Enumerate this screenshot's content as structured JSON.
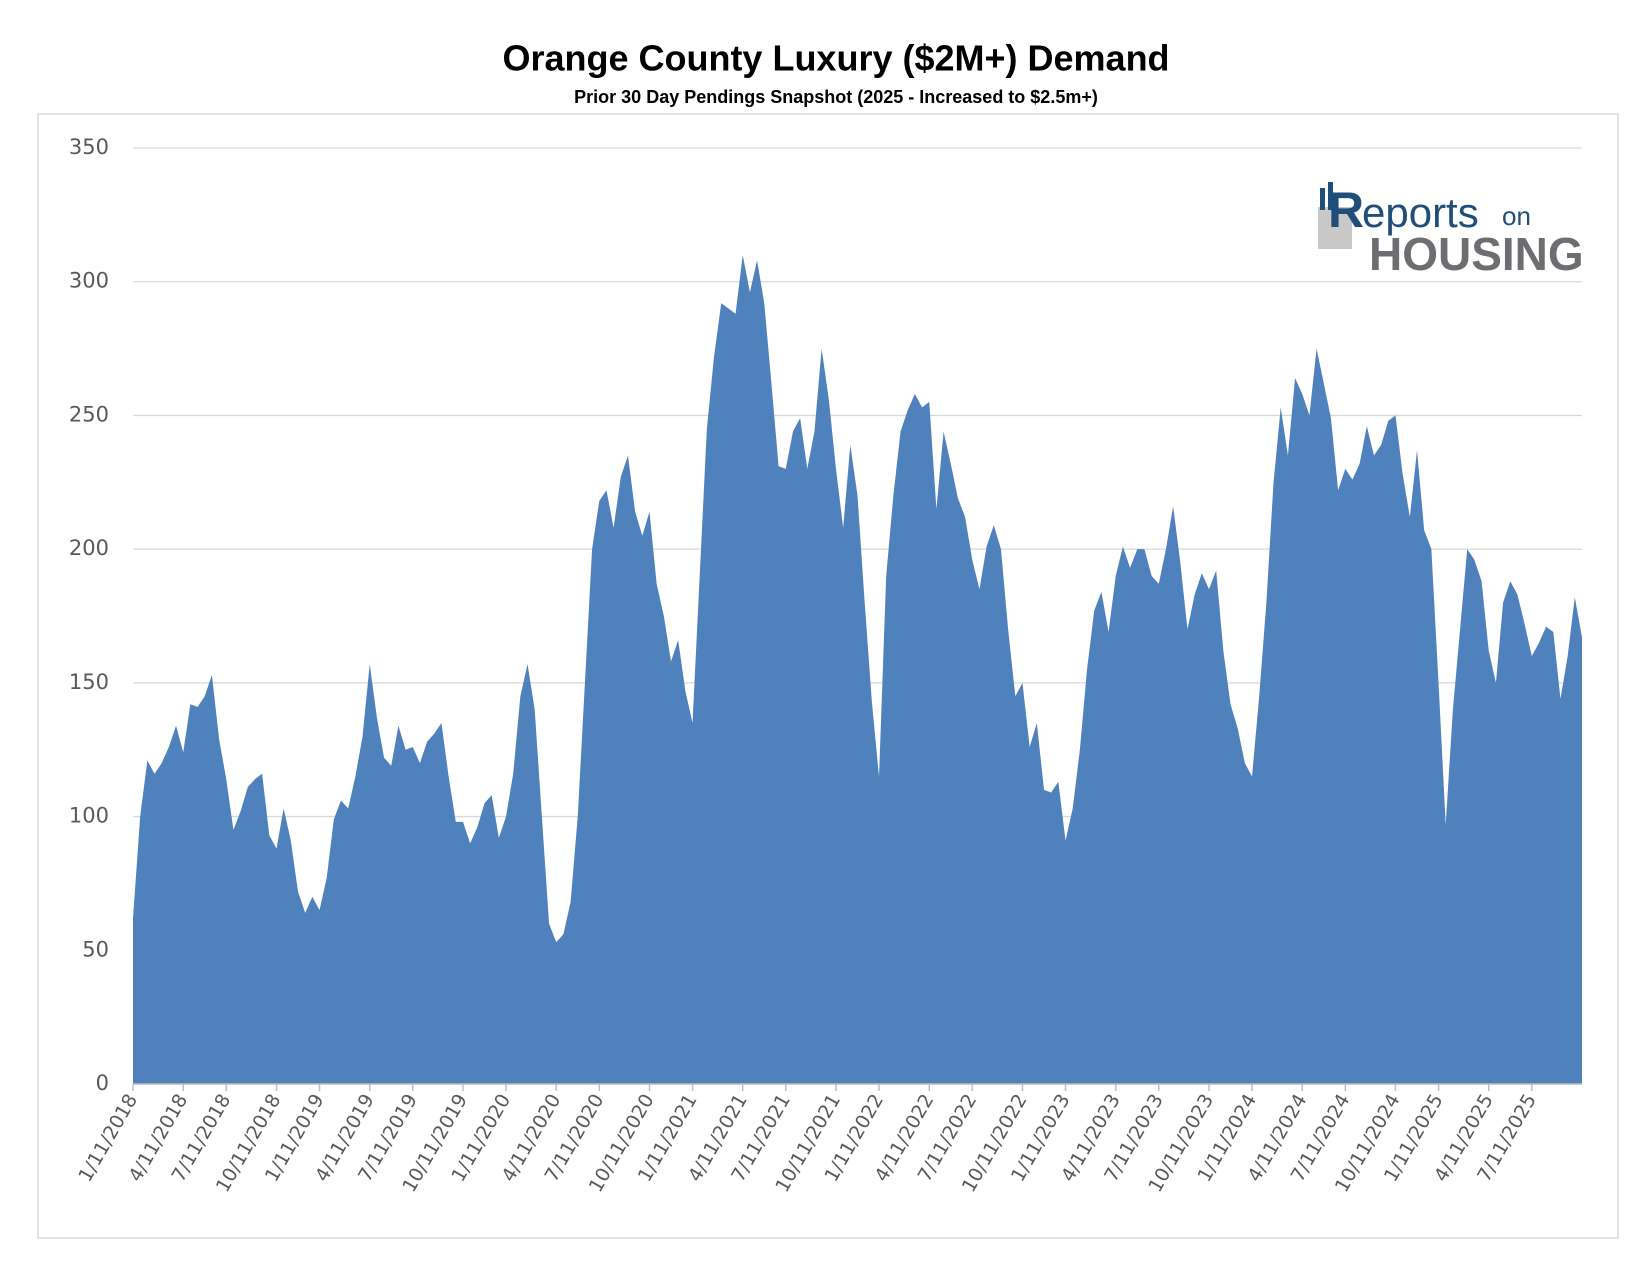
{
  "chart_data": {
    "type": "area",
    "title": "Orange County Luxury ($2M+) Demand",
    "subtitle": "Prior 30 Day Pendings Snapshot (2025 - Increased to $2.5m+)",
    "logo_text": [
      "R",
      "eports",
      "on",
      "HOUSING"
    ],
    "color": "#4f81bd",
    "grid": true,
    "ylim": [
      0,
      350
    ],
    "yticks": [
      0,
      50,
      100,
      150,
      200,
      250,
      300,
      350
    ],
    "categories": [
      "1/11/2018",
      null,
      null,
      null,
      null,
      null,
      null,
      "4/11/2018",
      null,
      null,
      null,
      null,
      null,
      "7/11/2018",
      null,
      null,
      null,
      null,
      null,
      null,
      "10/11/2018",
      null,
      null,
      null,
      null,
      null,
      "1/11/2019",
      null,
      null,
      null,
      null,
      null,
      null,
      "4/11/2019",
      null,
      null,
      null,
      null,
      null,
      "7/11/2019",
      null,
      null,
      null,
      null,
      null,
      null,
      "10/11/2019",
      null,
      null,
      null,
      null,
      null,
      "1/11/2020",
      null,
      null,
      null,
      null,
      null,
      null,
      "4/11/2020",
      null,
      null,
      null,
      null,
      null,
      "7/11/2020",
      null,
      null,
      null,
      null,
      null,
      null,
      "10/11/2020",
      null,
      null,
      null,
      null,
      null,
      "1/11/2021",
      null,
      null,
      null,
      null,
      null,
      null,
      "4/11/2021",
      null,
      null,
      null,
      null,
      null,
      "7/11/2021",
      null,
      null,
      null,
      null,
      null,
      null,
      "10/11/2021",
      null,
      null,
      null,
      null,
      null,
      "1/11/2022",
      null,
      null,
      null,
      null,
      null,
      null,
      "4/11/2022",
      null,
      null,
      null,
      null,
      null,
      "7/11/2022",
      null,
      null,
      null,
      null,
      null,
      null,
      "10/11/2022",
      null,
      null,
      null,
      null,
      null,
      "1/11/2023",
      null,
      null,
      null,
      null,
      null,
      null,
      "4/11/2023",
      null,
      null,
      null,
      null,
      null,
      "7/11/2023",
      null,
      null,
      null,
      null,
      null,
      null,
      "10/11/2023",
      null,
      null,
      null,
      null,
      null,
      "1/11/2024",
      null,
      null,
      null,
      null,
      null,
      null,
      "4/11/2024",
      null,
      null,
      null,
      null,
      null,
      "7/11/2024",
      null,
      null,
      null,
      null,
      null,
      null,
      "10/11/2024",
      null,
      null,
      null,
      null,
      null,
      "1/11/2025",
      null,
      null,
      null,
      null,
      null,
      null,
      "4/11/2025",
      null,
      null,
      null,
      null,
      null,
      "7/11/2025",
      null,
      null,
      null,
      null,
      null,
      null,
      null
    ],
    "values": [
      62,
      100,
      121,
      116,
      120,
      126,
      134,
      124,
      142,
      141,
      145,
      153,
      129,
      114,
      95,
      102,
      111,
      114,
      116,
      93,
      88,
      103,
      91,
      72,
      64,
      70,
      65,
      77,
      99,
      106,
      103,
      115,
      130,
      157,
      137,
      122,
      119,
      134,
      125,
      126,
      120,
      128,
      131,
      135,
      115,
      98,
      98,
      90,
      96,
      105,
      108,
      92,
      100,
      116,
      145,
      157,
      140,
      100,
      60,
      53,
      56,
      68,
      100,
      150,
      200,
      218,
      222,
      208,
      227,
      235,
      214,
      205,
      214,
      187,
      175,
      158,
      166,
      147,
      135,
      190,
      245,
      272,
      292,
      290,
      288,
      310,
      296,
      308,
      292,
      262,
      231,
      230,
      244,
      249,
      230,
      244,
      275,
      256,
      230,
      208,
      239,
      220,
      180,
      143,
      115,
      190,
      220,
      244,
      252,
      258,
      253,
      255,
      215,
      244,
      232,
      219,
      212,
      196,
      185,
      201,
      209,
      200,
      170,
      145,
      150,
      126,
      135,
      110,
      109,
      113,
      91,
      103,
      125,
      155,
      177,
      184,
      169,
      190,
      201,
      193,
      200,
      200,
      190,
      187,
      200,
      216,
      195,
      170,
      183,
      191,
      185,
      192,
      162,
      142,
      133,
      120,
      115,
      145,
      180,
      225,
      253,
      235,
      264,
      258,
      250,
      275,
      262,
      249,
      222,
      230,
      226,
      232,
      246,
      235,
      239,
      248,
      250,
      228,
      212,
      237,
      207,
      200,
      150,
      97,
      140,
      170,
      200,
      196,
      188,
      162,
      150,
      180,
      188,
      183,
      172,
      160,
      165,
      171,
      169,
      144,
      160,
      182,
      167
    ]
  }
}
